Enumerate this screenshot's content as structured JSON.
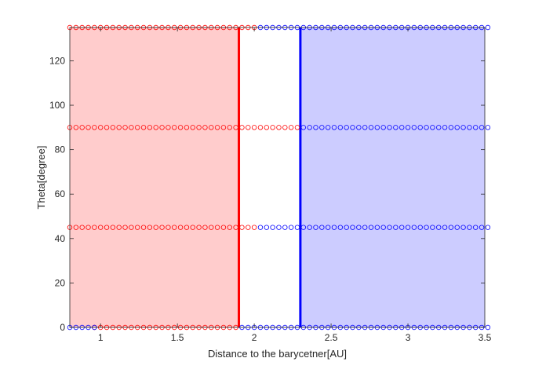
{
  "chart_data": {
    "type": "scatter",
    "title": "",
    "xlabel": "Distance to the barycetner[AU]",
    "ylabel": "Theta[degree]",
    "xlim": [
      0.8,
      3.5
    ],
    "ylim": [
      0,
      135
    ],
    "xticks": [
      1,
      1.5,
      2,
      2.5,
      3,
      3.5
    ],
    "xtick_labels": [
      "1",
      "1.5",
      "2",
      "2.5",
      "3",
      "3.5"
    ],
    "yticks": [
      0,
      20,
      40,
      60,
      80,
      100,
      120
    ],
    "ytick_labels": [
      "0",
      "20",
      "40",
      "60",
      "80",
      "100",
      "120"
    ],
    "grid": false,
    "legend": "none",
    "x_step": 0.04,
    "theta_values": [
      0,
      45,
      90,
      135
    ],
    "regions": [
      {
        "x_from": 0.8,
        "x_to": 1.9,
        "color": "#ffcccc",
        "boundary_x": 1.9,
        "boundary_color": "#ff0000"
      },
      {
        "x_from": 2.3,
        "x_to": 3.5,
        "color": "#ccccff",
        "boundary_x": 2.3,
        "boundary_color": "#0000ff"
      }
    ],
    "series": [
      {
        "color": "#ff0000",
        "marker": "circle-open",
        "rows": [
          {
            "theta": 0,
            "x_ranges": [
              [
                0.96,
                1.9
              ]
            ]
          },
          {
            "theta": 45,
            "x_ranges": [
              [
                0.8,
                2.0
              ]
            ]
          },
          {
            "theta": 90,
            "x_ranges": [
              [
                0.8,
                2.28
              ]
            ]
          },
          {
            "theta": 135,
            "x_ranges": [
              [
                0.8,
                2.0
              ]
            ]
          }
        ]
      },
      {
        "color": "#0000ff",
        "marker": "circle-open",
        "rows": [
          {
            "theta": 0,
            "x_ranges": [
              [
                0.8,
                0.96
              ],
              [
                1.92,
                3.5
              ]
            ]
          },
          {
            "theta": 45,
            "x_ranges": [
              [
                2.04,
                3.5
              ]
            ]
          },
          {
            "theta": 90,
            "x_ranges": [
              [
                2.32,
                3.5
              ]
            ]
          },
          {
            "theta": 135,
            "x_ranges": [
              [
                2.04,
                3.5
              ]
            ]
          }
        ]
      }
    ]
  }
}
